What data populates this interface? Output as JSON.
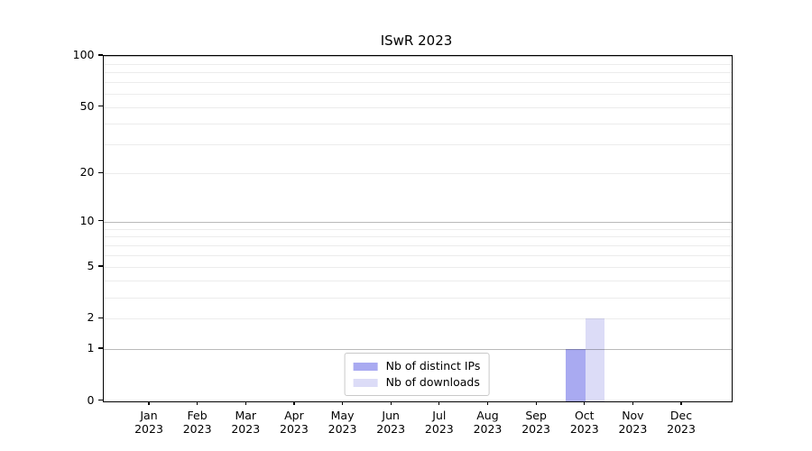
{
  "title": "ISwR 2023",
  "chart_data": {
    "type": "bar",
    "title": "ISwR 2023",
    "categories": [
      "Jan",
      "Feb",
      "Mar",
      "Apr",
      "May",
      "Jun",
      "Jul",
      "Aug",
      "Sep",
      "Oct",
      "Nov",
      "Dec"
    ],
    "category_year": "2023",
    "series": [
      {
        "name": "Nb of distinct IPs",
        "color": "#a9aaf1",
        "values": [
          0,
          0,
          0,
          0,
          0,
          0,
          0,
          0,
          0,
          1,
          0,
          0
        ]
      },
      {
        "name": "Nb of downloads",
        "color": "#dcdcf7",
        "values": [
          0,
          0,
          0,
          0,
          0,
          0,
          0,
          0,
          0,
          2,
          0,
          0
        ]
      }
    ],
    "xlabel": "",
    "ylabel": "",
    "yscale": "log1p",
    "ylim": [
      0,
      100
    ],
    "yticks": [
      0,
      1,
      2,
      5,
      10,
      20,
      50,
      100
    ],
    "major_gridlines": [
      1,
      10,
      100
    ],
    "minor_gridlines": [
      2,
      3,
      4,
      5,
      6,
      7,
      8,
      9,
      20,
      30,
      40,
      50,
      60,
      70,
      80,
      90
    ],
    "grid": true,
    "legend_position": "lower center"
  },
  "colors": {
    "spine": "#000000",
    "background": "#ffffff",
    "bar_distinct_ips": "#a9aaf1",
    "bar_downloads": "#dcdcf7"
  }
}
